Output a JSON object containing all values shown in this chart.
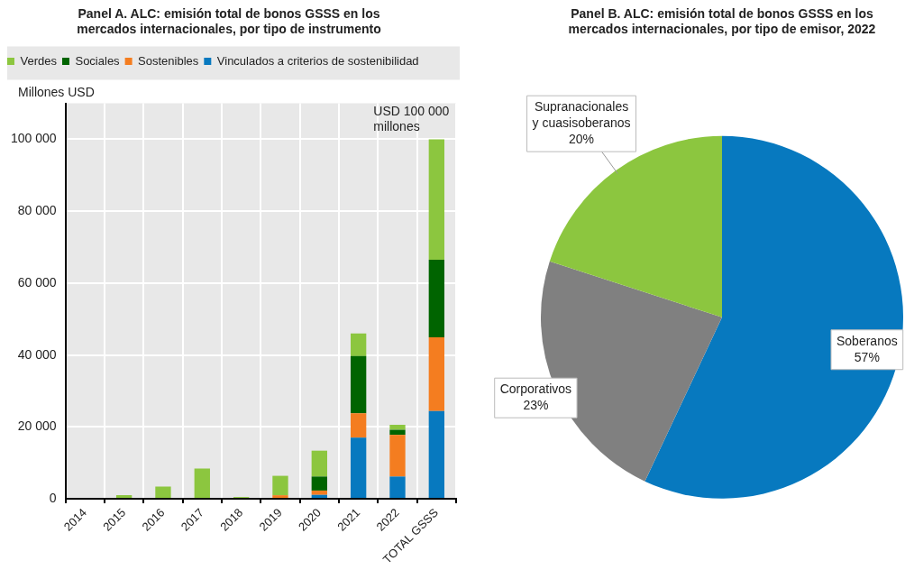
{
  "chart_data": [
    {
      "type": "bar",
      "title": "Panel A. ALC: emisión total de bonos GSSS en los mercados internacionales, por tipo de instrumento",
      "ylabel": "Millones USD",
      "categories": [
        "2014",
        "2015",
        "2016",
        "2017",
        "2018",
        "2019",
        "2020",
        "2021",
        "2022",
        "TOTAL GSSS"
      ],
      "stacked": true,
      "series": [
        {
          "name": "Vinculados a criterios de sostenibilidad",
          "color": "#0779bf",
          "values": [
            0,
            0,
            0,
            0,
            0,
            0,
            1100,
            17000,
            6200,
            24400
          ]
        },
        {
          "name": "Sostenibles",
          "color": "#f47d20",
          "values": [
            0,
            0,
            0,
            0,
            0,
            1000,
            1200,
            6800,
            11600,
            20500
          ]
        },
        {
          "name": "Sociales",
          "color": "#006400",
          "values": [
            0,
            0,
            0,
            0,
            0,
            0,
            3900,
            15900,
            1400,
            21600
          ]
        },
        {
          "name": "Verdes",
          "color": "#8cc63f",
          "values": [
            0,
            1000,
            3400,
            8400,
            500,
            5400,
            7200,
            6300,
            1400,
            33500
          ]
        }
      ],
      "ylim": [
        0,
        110000
      ],
      "yticks": [
        {
          "value": 0,
          "label": "0"
        },
        {
          "value": 20000,
          "label": "20 000"
        },
        {
          "value": 40000,
          "label": "40 000"
        },
        {
          "value": 60000,
          "label": "60 000"
        },
        {
          "value": 80000,
          "label": "80 000"
        },
        {
          "value": 100000,
          "label": "100 000"
        }
      ],
      "grid": true,
      "legend": "top",
      "annotations": [
        {
          "text": "USD 100 000 millones",
          "x": "TOTAL GSSS",
          "y": 100000
        }
      ]
    },
    {
      "type": "pie",
      "title": "Panel B. ALC: emisión total de bonos GSSS en los mercados internacionales, por tipo de emisor, 2022",
      "categories": [
        "Soberanos",
        "Corporativos",
        "Supranacionales y cuasisoberanos"
      ],
      "values": [
        57,
        23,
        20
      ],
      "colors": [
        "#0779bf",
        "#808080",
        "#8cc63f"
      ],
      "value_labels": [
        "57%",
        "23%",
        "20%"
      ],
      "legend": false
    }
  ]
}
